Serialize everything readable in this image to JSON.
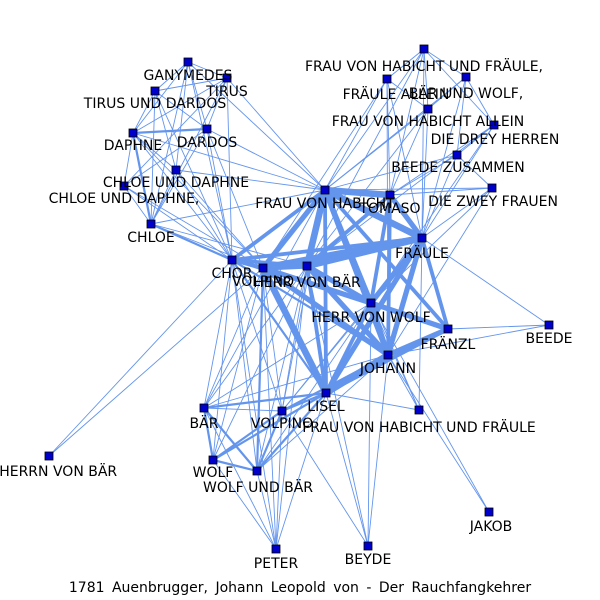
{
  "caption": "1781 Auenbrugger, Johann Leopold von - Der Rauchfangkehrer",
  "colors": {
    "edge": "#6495ed",
    "node_fill": "#0000cd",
    "node_stroke": "#000000",
    "label": "#000000"
  },
  "nodes": [
    {
      "id": "ganymedes",
      "label": "GANYMEDES"
    },
    {
      "id": "tirus",
      "label": "TIRUS"
    },
    {
      "id": "tirus_und_dardos",
      "label": "TIRUS UND DARDOS"
    },
    {
      "id": "daphne",
      "label": "DAPHNE"
    },
    {
      "id": "dardos",
      "label": "DARDOS"
    },
    {
      "id": "chloe_und_daphne",
      "label": "CHLOE UND DAPHNE"
    },
    {
      "id": "chloe_und_daphne2",
      "label": "CHLOE UND DAPHNE,"
    },
    {
      "id": "chloe",
      "label": "CHLOE"
    },
    {
      "id": "chor",
      "label": "CHOR"
    },
    {
      "id": "volpino_top",
      "label": "VOLPINO"
    },
    {
      "id": "herr_von_baer",
      "label": "HERR VON BÄR"
    },
    {
      "id": "frau_von_habicht",
      "label": "FRAU VON HABICHT"
    },
    {
      "id": "tomaso",
      "label": "TOMASO"
    },
    {
      "id": "fraeule",
      "label": "FRÄULE"
    },
    {
      "id": "herr_von_wolf",
      "label": "HERR VON WOLF"
    },
    {
      "id": "fraenzl",
      "label": "FRÄNZL"
    },
    {
      "id": "johann",
      "label": "JOHANN"
    },
    {
      "id": "beede",
      "label": "BEEDE"
    },
    {
      "id": "lisel",
      "label": "LISEL"
    },
    {
      "id": "frau_habicht_und_fraeule",
      "label": "FRAU VON HABICHT UND FRÄULE"
    },
    {
      "id": "baer",
      "label": "BÄR"
    },
    {
      "id": "volpino",
      "label": "VOLPINO"
    },
    {
      "id": "wolf",
      "label": "WOLF"
    },
    {
      "id": "wolf_und_baer",
      "label": "WOLF UND BÄR"
    },
    {
      "id": "zum_herrn_von_baer",
      "label": "ZUM HERRN VON BÄR"
    },
    {
      "id": "peter",
      "label": "PETER"
    },
    {
      "id": "beyde",
      "label": "BEYDE"
    },
    {
      "id": "jakob",
      "label": "JAKOB"
    },
    {
      "id": "frau_habicht_und_fraeule_comma",
      "label": "FRAU VON HABICHT UND FRÄULE,"
    },
    {
      "id": "fraeule_allein",
      "label": "FRÄULE ALLEIN"
    },
    {
      "id": "baer_und_wolf",
      "label": "BÄR UND WOLF,"
    },
    {
      "id": "frau_habicht_allein",
      "label": "FRAU VON HABICHT ALLEIN"
    },
    {
      "id": "drey_herren",
      "label": "DIE DREY HERREN"
    },
    {
      "id": "beede_zusammen",
      "label": "BEEDE ZUSAMMEN"
    },
    {
      "id": "zwey_frauen",
      "label": "DIE ZWEY FRAUEN"
    }
  ],
  "edges": [
    [
      "frau_von_habicht",
      "fraeule",
      5
    ],
    [
      "frau_von_habicht",
      "herr_von_baer",
      5
    ],
    [
      "frau_von_habicht",
      "volpino_top",
      4
    ],
    [
      "frau_von_habicht",
      "herr_von_wolf",
      4
    ],
    [
      "frau_von_habicht",
      "johann",
      4
    ],
    [
      "frau_von_habicht",
      "tomaso",
      5
    ],
    [
      "frau_von_habicht",
      "chor",
      3
    ],
    [
      "frau_von_habicht",
      "lisel",
      3
    ],
    [
      "frau_von_habicht",
      "fraenzl",
      3
    ],
    [
      "fraeule",
      "herr_von_baer",
      5
    ],
    [
      "fraeule",
      "volpino_top",
      5
    ],
    [
      "fraeule",
      "herr_von_wolf",
      4
    ],
    [
      "fraeule",
      "johann",
      4
    ],
    [
      "fraeule",
      "tomaso",
      4
    ],
    [
      "fraeule",
      "lisel",
      4
    ],
    [
      "fraeule",
      "fraenzl",
      3
    ],
    [
      "fraeule",
      "chor",
      3
    ],
    [
      "herr_von_baer",
      "volpino_top",
      4
    ],
    [
      "herr_von_baer",
      "herr_von_wolf",
      4
    ],
    [
      "herr_von_baer",
      "johann",
      4
    ],
    [
      "herr_von_baer",
      "lisel",
      3
    ],
    [
      "herr_von_baer",
      "chor",
      3
    ],
    [
      "herr_von_baer",
      "tomaso",
      3
    ],
    [
      "volpino_top",
      "johann",
      4
    ],
    [
      "volpino_top",
      "herr_von_wolf",
      4
    ],
    [
      "volpino_top",
      "lisel",
      5
    ],
    [
      "volpino_top",
      "chor",
      3
    ],
    [
      "johann",
      "lisel",
      5
    ],
    [
      "johann",
      "herr_von_wolf",
      4
    ],
    [
      "johann",
      "fraenzl",
      4
    ],
    [
      "herr_von_wolf",
      "fraenzl",
      4
    ],
    [
      "herr_von_wolf",
      "lisel",
      3
    ],
    [
      "tomaso",
      "herr_von_wolf",
      3
    ],
    [
      "tomaso",
      "johann",
      3
    ],
    [
      "fraenzl",
      "lisel",
      3
    ],
    [
      "chor",
      "lisel",
      2
    ],
    [
      "chor",
      "johann",
      2
    ],
    [
      "chor",
      "herr_von_wolf",
      2
    ],
    [
      "ganymedes",
      "tirus",
      1
    ],
    [
      "ganymedes",
      "tirus_und_dardos",
      1
    ],
    [
      "ganymedes",
      "daphne",
      1
    ],
    [
      "ganymedes",
      "dardos",
      1
    ],
    [
      "ganymedes",
      "chloe_und_daphne",
      1
    ],
    [
      "ganymedes",
      "chloe",
      1
    ],
    [
      "ganymedes",
      "chor",
      1
    ],
    [
      "ganymedes",
      "frau_von_habicht",
      1
    ],
    [
      "tirus",
      "tirus_und_dardos",
      1
    ],
    [
      "tirus",
      "daphne",
      1
    ],
    [
      "tirus",
      "dardos",
      1
    ],
    [
      "tirus",
      "chloe",
      1
    ],
    [
      "tirus",
      "chor",
      1
    ],
    [
      "tirus",
      "frau_von_habicht",
      1
    ],
    [
      "tirus",
      "chloe_und_daphne2",
      1
    ],
    [
      "tirus_und_dardos",
      "daphne",
      1
    ],
    [
      "tirus_und_dardos",
      "dardos",
      1
    ],
    [
      "tirus_und_dardos",
      "chloe",
      1
    ],
    [
      "tirus_und_dardos",
      "chor",
      1
    ],
    [
      "tirus_und_dardos",
      "chloe_und_daphne",
      1
    ],
    [
      "daphne",
      "dardos",
      2
    ],
    [
      "daphne",
      "chloe",
      2
    ],
    [
      "daphne",
      "chor",
      1
    ],
    [
      "daphne",
      "chloe_und_daphne",
      1
    ],
    [
      "daphne",
      "chloe_und_daphne2",
      1
    ],
    [
      "daphne",
      "frau_von_habicht",
      1
    ],
    [
      "daphne",
      "volpino_top",
      1
    ],
    [
      "dardos",
      "chloe",
      1
    ],
    [
      "dardos",
      "chor",
      1
    ],
    [
      "dardos",
      "frau_von_habicht",
      1
    ],
    [
      "dardos",
      "chloe_und_daphne2",
      1
    ],
    [
      "dardos",
      "volpino_top",
      1
    ],
    [
      "chloe_und_daphne",
      "chor",
      1
    ],
    [
      "chloe_und_daphne",
      "chloe",
      1
    ],
    [
      "chloe_und_daphne",
      "frau_von_habicht",
      1
    ],
    [
      "chloe_und_daphne",
      "volpino_top",
      1
    ],
    [
      "chloe_und_daphne2",
      "chor",
      1
    ],
    [
      "chloe_und_daphne2",
      "chloe",
      1
    ],
    [
      "chloe_und_daphne2",
      "volpino_top",
      1
    ],
    [
      "chloe",
      "chor",
      2
    ],
    [
      "chloe",
      "volpino_top",
      1
    ],
    [
      "chloe",
      "frau_von_habicht",
      1
    ],
    [
      "chloe",
      "herr_von_baer",
      1
    ],
    [
      "chor",
      "volpino_top",
      2
    ],
    [
      "chor",
      "baer",
      1
    ],
    [
      "chor",
      "wolf",
      1
    ],
    [
      "chor",
      "wolf_und_baer",
      1
    ],
    [
      "chor",
      "zum_herrn_von_baer",
      1
    ],
    [
      "chor",
      "peter",
      1
    ],
    [
      "chor",
      "volpino",
      1
    ],
    [
      "frau_habicht_und_fraeule_comma",
      "fraeule_allein",
      1
    ],
    [
      "frau_habicht_und_fraeule_comma",
      "baer_und_wolf",
      1
    ],
    [
      "frau_habicht_und_fraeule_comma",
      "frau_habicht_allein",
      1
    ],
    [
      "frau_habicht_und_fraeule_comma",
      "fraeule",
      1
    ],
    [
      "frau_habicht_und_fraeule_comma",
      "frau_von_habicht",
      1
    ],
    [
      "frau_habicht_und_fraeule_comma",
      "tomaso",
      1
    ],
    [
      "frau_habicht_und_fraeule_comma",
      "herr_von_baer",
      1
    ],
    [
      "frau_habicht_und_fraeule_comma",
      "drey_herren",
      1
    ],
    [
      "fraeule_allein",
      "fraeule",
      1
    ],
    [
      "fraeule_allein",
      "frau_von_habicht",
      1
    ],
    [
      "fraeule_allein",
      "frau_habicht_allein",
      1
    ],
    [
      "fraeule_allein",
      "tomaso",
      1
    ],
    [
      "fraeule_allein",
      "volpino_top",
      1
    ],
    [
      "fraeule_allein",
      "johann",
      1
    ],
    [
      "baer_und_wolf",
      "fraeule",
      1
    ],
    [
      "baer_und_wolf",
      "frau_von_habicht",
      1
    ],
    [
      "baer_und_wolf",
      "beede_zusammen",
      1
    ],
    [
      "baer_und_wolf",
      "frau_habicht_allein",
      1
    ],
    [
      "baer_und_wolf",
      "drey_herren",
      1
    ],
    [
      "frau_habicht_allein",
      "frau_von_habicht",
      1
    ],
    [
      "frau_habicht_allein",
      "fraeule",
      1
    ],
    [
      "frau_habicht_allein",
      "tomaso",
      1
    ],
    [
      "frau_habicht_allein",
      "herr_von_baer",
      1
    ],
    [
      "drey_herren",
      "fraeule",
      1
    ],
    [
      "drey_herren",
      "tomaso",
      1
    ],
    [
      "drey_herren",
      "herr_von_wolf",
      1
    ],
    [
      "drey_herren",
      "herr_von_baer",
      1
    ],
    [
      "drey_herren",
      "beede_zusammen",
      1
    ],
    [
      "beede_zusammen",
      "fraeule",
      1
    ],
    [
      "beede_zusammen",
      "frau_von_habicht",
      1
    ],
    [
      "beede_zusammen",
      "tomaso",
      1
    ],
    [
      "beede_zusammen",
      "zwey_frauen",
      1
    ],
    [
      "zwey_frauen",
      "fraeule",
      1
    ],
    [
      "zwey_frauen",
      "frau_von_habicht",
      1
    ],
    [
      "zwey_frauen",
      "tomaso",
      1
    ],
    [
      "zwey_frauen",
      "herr_von_wolf",
      1
    ],
    [
      "zwey_frauen",
      "johann",
      1
    ],
    [
      "fraeule",
      "beede",
      1
    ],
    [
      "fraenzl",
      "beede",
      1
    ],
    [
      "johann",
      "beede",
      1
    ],
    [
      "lisel",
      "baer",
      2
    ],
    [
      "lisel",
      "volpino",
      2
    ],
    [
      "lisel",
      "wolf",
      2
    ],
    [
      "lisel",
      "wolf_und_baer",
      2
    ],
    [
      "lisel",
      "peter",
      1
    ],
    [
      "lisel",
      "beyde",
      1
    ],
    [
      "lisel",
      "frau_habicht_und_fraeule",
      1
    ],
    [
      "lisel",
      "fraeule",
      3
    ],
    [
      "johann",
      "frau_habicht_und_fraeule",
      1
    ],
    [
      "johann",
      "beyde",
      1
    ],
    [
      "johann",
      "jakob",
      1
    ],
    [
      "johann",
      "volpino",
      2
    ],
    [
      "johann",
      "baer",
      1
    ],
    [
      "johann",
      "wolf_und_baer",
      1
    ],
    [
      "herr_von_baer",
      "baer",
      1
    ],
    [
      "herr_von_baer",
      "volpino",
      1
    ],
    [
      "herr_von_baer",
      "wolf",
      1
    ],
    [
      "herr_von_baer",
      "wolf_und_baer",
      1
    ],
    [
      "herr_von_baer",
      "peter",
      1
    ],
    [
      "herr_von_baer",
      "beyde",
      1
    ],
    [
      "volpino_top",
      "baer",
      1
    ],
    [
      "volpino_top",
      "volpino",
      1
    ],
    [
      "volpino_top",
      "wolf",
      1
    ],
    [
      "volpino_top",
      "wolf_und_baer",
      2
    ],
    [
      "volpino_top",
      "peter",
      1
    ],
    [
      "volpino_top",
      "zum_herrn_von_baer",
      1
    ],
    [
      "herr_von_wolf",
      "baer",
      1
    ],
    [
      "herr_von_wolf",
      "volpino",
      1
    ],
    [
      "herr_von_wolf",
      "wolf_und_baer",
      1
    ],
    [
      "herr_von_wolf",
      "beyde",
      1
    ],
    [
      "herr_von_wolf",
      "frau_habicht_und_fraeule",
      1
    ],
    [
      "herr_von_wolf",
      "jakob",
      1
    ],
    [
      "fraeule",
      "frau_habicht_und_fraeule",
      1
    ],
    [
      "fraeule",
      "volpino",
      1
    ],
    [
      "frau_von_habicht",
      "frau_habicht_und_fraeule",
      1
    ],
    [
      "frau_von_habicht",
      "volpino",
      1
    ],
    [
      "frau_von_habicht",
      "baer",
      1
    ],
    [
      "baer",
      "wolf",
      2
    ],
    [
      "baer",
      "wolf_und_baer",
      2
    ],
    [
      "baer",
      "volpino",
      1
    ],
    [
      "baer",
      "peter",
      1
    ],
    [
      "wolf",
      "wolf_und_baer",
      2
    ],
    [
      "wolf",
      "volpino",
      2
    ],
    [
      "wolf",
      "peter",
      1
    ],
    [
      "wolf_und_baer",
      "volpino",
      2
    ],
    [
      "wolf_und_baer",
      "peter",
      1
    ],
    [
      "volpino",
      "peter",
      1
    ],
    [
      "volpino",
      "beyde",
      1
    ]
  ]
}
